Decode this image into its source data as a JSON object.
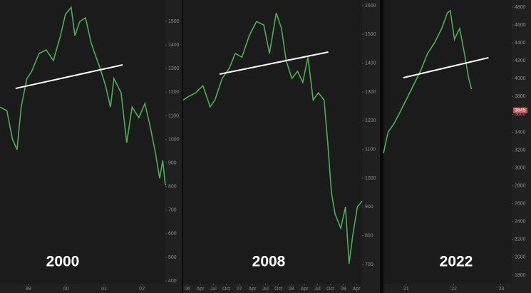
{
  "chart_data": [
    {
      "type": "line",
      "title": "2000",
      "color": "#4caf50",
      "x": [
        1998.25,
        1998.43,
        1998.58,
        1998.7,
        1998.81,
        1998.96,
        1999.09,
        1999.28,
        1999.47,
        1999.66,
        1999.85,
        1999.98,
        2000.13,
        2000.23,
        2000.36,
        2000.51,
        2000.66,
        2000.79,
        2000.89,
        2001.04,
        2001.17,
        2001.26,
        2001.45,
        2001.6,
        2001.74,
        2001.92,
        2002.08,
        2002.21,
        2002.36,
        2002.47,
        2002.55,
        2002.62
      ],
      "values": [
        1137,
        1122,
        1001,
        956,
        1137,
        1258,
        1289,
        1364,
        1379,
        1334,
        1440,
        1530,
        1560,
        1440,
        1500,
        1515,
        1409,
        1349,
        1304,
        1228,
        1137,
        1258,
        1198,
        986,
        1137,
        1092,
        1152,
        1062,
        941,
        835,
        911,
        805
      ],
      "xlim": [
        1998.25,
        2002.62
      ],
      "ylim": [
        382,
        1591
      ],
      "xticks": [
        {
          "value": 1999,
          "label": "99"
        },
        {
          "value": 2000,
          "label": "00"
        },
        {
          "value": 2001,
          "label": "01"
        },
        {
          "value": 2002,
          "label": "02"
        }
      ],
      "yticks": [
        400,
        500,
        600,
        700,
        800,
        900,
        1000,
        1100,
        1200,
        1300,
        1400,
        1500
      ],
      "trendline": {
        "x": [
          1998.66,
          2001.49
        ],
        "values": [
          1216,
          1316
        ]
      }
    },
    {
      "type": "line",
      "title": "2008",
      "color": "#4caf50",
      "x": [
        2005.92,
        2006.03,
        2006.16,
        2006.3,
        2006.44,
        2006.53,
        2006.67,
        2006.81,
        2006.92,
        2007.05,
        2007.19,
        2007.33,
        2007.47,
        2007.58,
        2007.71,
        2007.81,
        2007.9,
        2008.01,
        2008.12,
        2008.22,
        2008.32,
        2008.42,
        2008.52,
        2008.63,
        2008.7,
        2008.77,
        2008.84,
        2008.95,
        2009.04,
        2009.11,
        2009.18,
        2009.27,
        2009.36
      ],
      "values": [
        1272,
        1285,
        1297,
        1322,
        1248,
        1272,
        1347,
        1384,
        1434,
        1421,
        1496,
        1545,
        1533,
        1434,
        1575,
        1521,
        1409,
        1347,
        1372,
        1334,
        1421,
        1272,
        1297,
        1272,
        1124,
        950,
        876,
        826,
        900,
        702,
        801,
        900,
        920
      ],
      "xlim": [
        2005.92,
        2009.36
      ],
      "ylim": [
        628,
        1620
      ],
      "xticks": [
        {
          "value": 2006,
          "label": "06"
        },
        {
          "value": 2006.25,
          "label": "Apr"
        },
        {
          "value": 2006.5,
          "label": "Jul"
        },
        {
          "value": 2006.75,
          "label": "Oct"
        },
        {
          "value": 2007,
          "label": "07"
        },
        {
          "value": 2007.25,
          "label": "Apr"
        },
        {
          "value": 2007.5,
          "label": "Jul"
        },
        {
          "value": 2007.75,
          "label": "Oct"
        },
        {
          "value": 2008,
          "label": "08"
        },
        {
          "value": 2008.25,
          "label": "Apr"
        },
        {
          "value": 2008.5,
          "label": "Jul"
        },
        {
          "value": 2008.75,
          "label": "Oct"
        },
        {
          "value": 2009,
          "label": "09"
        },
        {
          "value": 2009.25,
          "label": "Apr"
        }
      ],
      "yticks": [
        700,
        800,
        900,
        1000,
        1100,
        1200,
        1300,
        1400,
        1500,
        1600
      ],
      "trendline": {
        "x": [
          2006.62,
          2008.71
        ],
        "values": [
          1362,
          1439
        ]
      }
    },
    {
      "type": "line",
      "title": "2022",
      "color": "#4caf50",
      "x": [
        2020.52,
        2020.62,
        2020.73,
        2020.85,
        2021.0,
        2021.15,
        2021.3,
        2021.45,
        2021.6,
        2021.75,
        2021.87,
        2021.93,
        2022.02,
        2022.13,
        2022.23,
        2022.32,
        2022.38
      ],
      "values": [
        3165,
        3404,
        3484,
        3603,
        3763,
        3922,
        4082,
        4281,
        4401,
        4561,
        4736,
        4760,
        4441,
        4561,
        4281,
        4002,
        3883
      ],
      "xlim": [
        2020.52,
        2023.23
      ],
      "ylim": [
        1688,
        4880
      ],
      "xticks": [
        {
          "value": 2021,
          "label": "21"
        },
        {
          "value": 2022,
          "label": "'22"
        },
        {
          "value": 2023,
          "label": "'23"
        }
      ],
      "yticks": [
        1800,
        2000,
        2200,
        2400,
        2600,
        2800,
        3000,
        3200,
        3400,
        3600,
        3800,
        4000,
        4200,
        4400,
        4600,
        4800
      ],
      "trendline": {
        "x": [
          2020.94,
          2022.74
        ],
        "values": [
          4010,
          4234
        ]
      },
      "last_price": 3645
    }
  ]
}
